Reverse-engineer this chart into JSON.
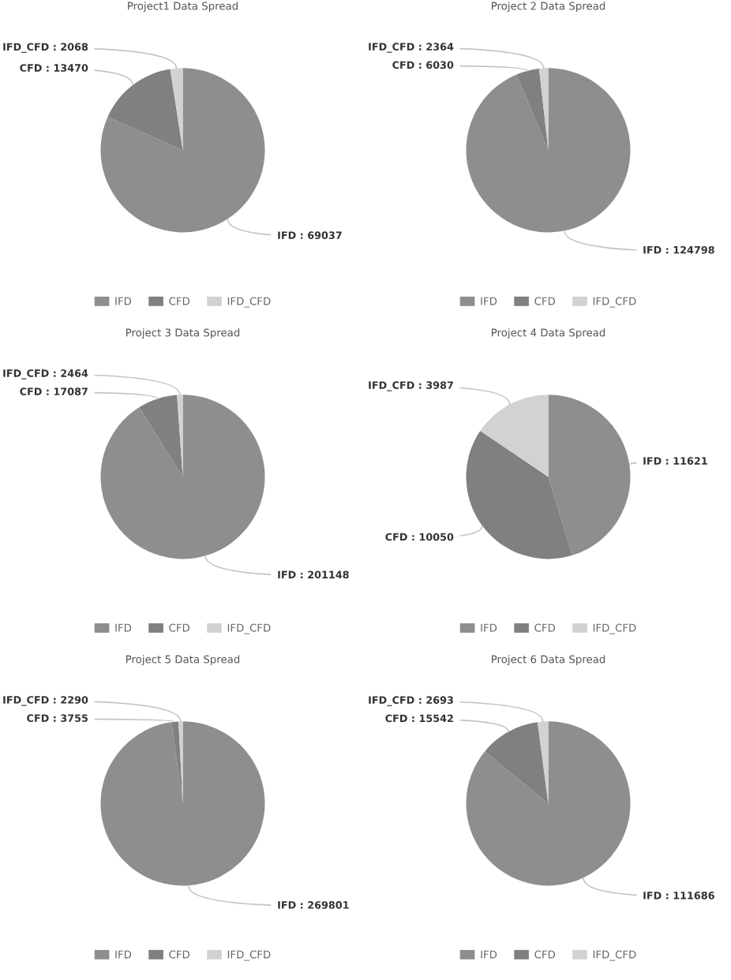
{
  "chart_data": [
    {
      "type": "pie",
      "title": "Project1 Data Spread",
      "categories": [
        "IFD",
        "CFD",
        "IFD_CFD"
      ],
      "values": [
        69037,
        13470,
        2068
      ],
      "colors": [
        "#8e8e8e",
        "#808080",
        "#d2d2d2"
      ],
      "value_labels": [
        "IFD : 69037",
        "CFD : 13470",
        "IFD_CFD : 2068"
      ],
      "legend": "bottom"
    },
    {
      "type": "pie",
      "title": "Project 2 Data Spread",
      "categories": [
        "IFD",
        "CFD",
        "IFD_CFD"
      ],
      "values": [
        124798,
        6030,
        2364
      ],
      "colors": [
        "#8e8e8e",
        "#808080",
        "#d2d2d2"
      ],
      "value_labels": [
        "IFD : 124798",
        "CFD : 6030",
        "IFD_CFD : 2364"
      ],
      "legend": "bottom"
    },
    {
      "type": "pie",
      "title": "Project 3 Data Spread",
      "categories": [
        "IFD",
        "CFD",
        "IFD_CFD"
      ],
      "values": [
        201148,
        17087,
        2464
      ],
      "colors": [
        "#8e8e8e",
        "#808080",
        "#d2d2d2"
      ],
      "value_labels": [
        "IFD : 201148",
        "CFD : 17087",
        "IFD_CFD : 2464"
      ],
      "legend": "bottom"
    },
    {
      "type": "pie",
      "title": "Project 4 Data Spread",
      "categories": [
        "IFD",
        "CFD",
        "IFD_CFD"
      ],
      "values": [
        11621,
        10050,
        3987
      ],
      "colors": [
        "#8e8e8e",
        "#808080",
        "#d2d2d2"
      ],
      "value_labels": [
        "IFD : 11621",
        "CFD : 10050",
        "IFD_CFD : 3987"
      ],
      "legend": "bottom"
    },
    {
      "type": "pie",
      "title": "Project 5 Data Spread",
      "categories": [
        "IFD",
        "CFD",
        "IFD_CFD"
      ],
      "values": [
        269801,
        3755,
        2290
      ],
      "colors": [
        "#8e8e8e",
        "#808080",
        "#d2d2d2"
      ],
      "value_labels": [
        "IFD : 269801",
        "CFD : 3755",
        "IFD_CFD : 2290"
      ],
      "legend": "bottom"
    },
    {
      "type": "pie",
      "title": "Project 6 Data Spread",
      "categories": [
        "IFD",
        "CFD",
        "IFD_CFD"
      ],
      "values": [
        111686,
        15542,
        2693
      ],
      "colors": [
        "#8e8e8e",
        "#808080",
        "#d2d2d2"
      ],
      "value_labels": [
        "IFD : 111686",
        "CFD : 15542",
        "IFD_CFD : 2693"
      ],
      "legend": "bottom"
    }
  ]
}
